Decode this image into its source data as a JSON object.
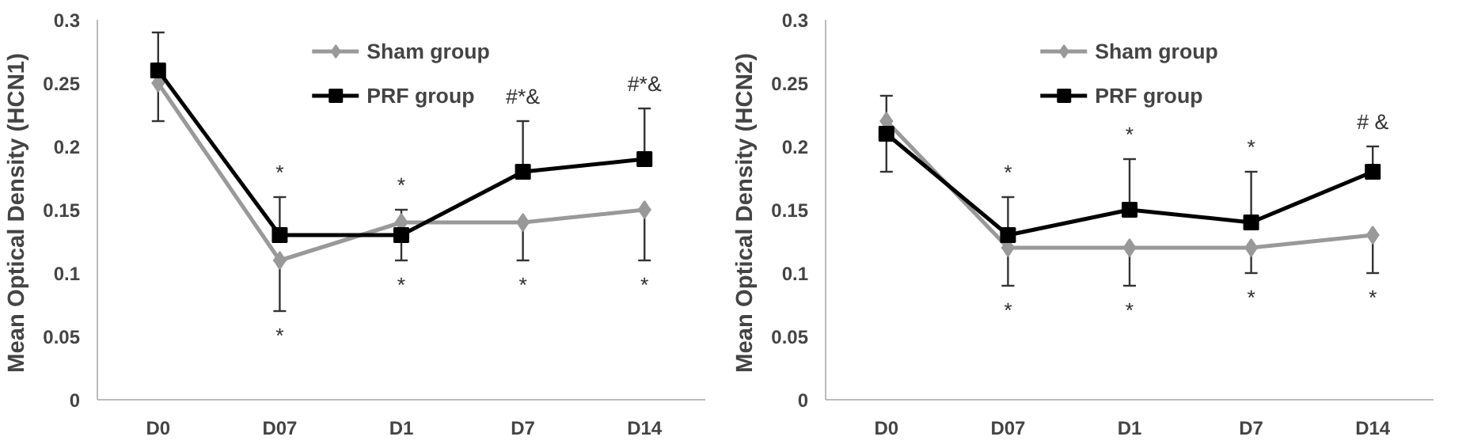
{
  "chart_data": [
    {
      "type": "line",
      "ylabel": "Mean Optical Density  (HCN1)",
      "categories": [
        "D0",
        "D07",
        "D1",
        "D7",
        "D14"
      ],
      "ylim": [
        0,
        0.3
      ],
      "yticks": [
        0,
        0.05,
        0.1,
        0.15,
        0.2,
        0.25,
        0.3
      ],
      "grid": false,
      "legend": "top",
      "series": [
        {
          "name": "Sham group",
          "color": "#999999",
          "marker": "diamond",
          "values": [
            0.25,
            0.11,
            0.14,
            0.14,
            0.15
          ],
          "errors": [
            [
              0.22,
              0.25
            ],
            [
              0.07,
              0.11
            ],
            [
              0.14,
              0.15
            ],
            [
              0.11,
              0.14
            ],
            [
              0.11,
              0.15
            ]
          ]
        },
        {
          "name": "PRF group",
          "color": "#000000",
          "marker": "square",
          "values": [
            0.26,
            0.13,
            0.13,
            0.18,
            0.19
          ],
          "errors": [
            [
              0.26,
              0.29
            ],
            [
              0.13,
              0.16
            ],
            [
              0.11,
              0.13
            ],
            [
              0.18,
              0.22
            ],
            [
              0.19,
              0.23
            ]
          ]
        }
      ],
      "annotations": [
        "*",
        "*",
        "*",
        "*",
        "#*&",
        "*",
        "#*&",
        "*"
      ]
    },
    {
      "type": "line",
      "ylabel": "Mean Optical Density  (HCN2)",
      "categories": [
        "D0",
        "D07",
        "D1",
        "D7",
        "D14"
      ],
      "ylim": [
        0,
        0.3
      ],
      "yticks": [
        0,
        0.05,
        0.1,
        0.15,
        0.2,
        0.25,
        0.3
      ],
      "grid": false,
      "legend": "top",
      "series": [
        {
          "name": "Sham group",
          "color": "#999999",
          "marker": "diamond",
          "values": [
            0.22,
            0.12,
            0.12,
            0.12,
            0.13
          ],
          "errors": [
            [
              0.22,
              0.24
            ],
            [
              0.09,
              0.12
            ],
            [
              0.09,
              0.12
            ],
            [
              0.1,
              0.12
            ],
            [
              0.1,
              0.13
            ]
          ]
        },
        {
          "name": "PRF group",
          "color": "#000000",
          "marker": "square",
          "values": [
            0.21,
            0.13,
            0.15,
            0.14,
            0.18
          ],
          "errors": [
            [
              0.18,
              0.21
            ],
            [
              0.13,
              0.16
            ],
            [
              0.15,
              0.19
            ],
            [
              0.14,
              0.18
            ],
            [
              0.18,
              0.2
            ]
          ]
        }
      ],
      "annotations": [
        "*",
        "*",
        "*",
        "*",
        "*",
        "*",
        "# &",
        "*"
      ]
    }
  ]
}
